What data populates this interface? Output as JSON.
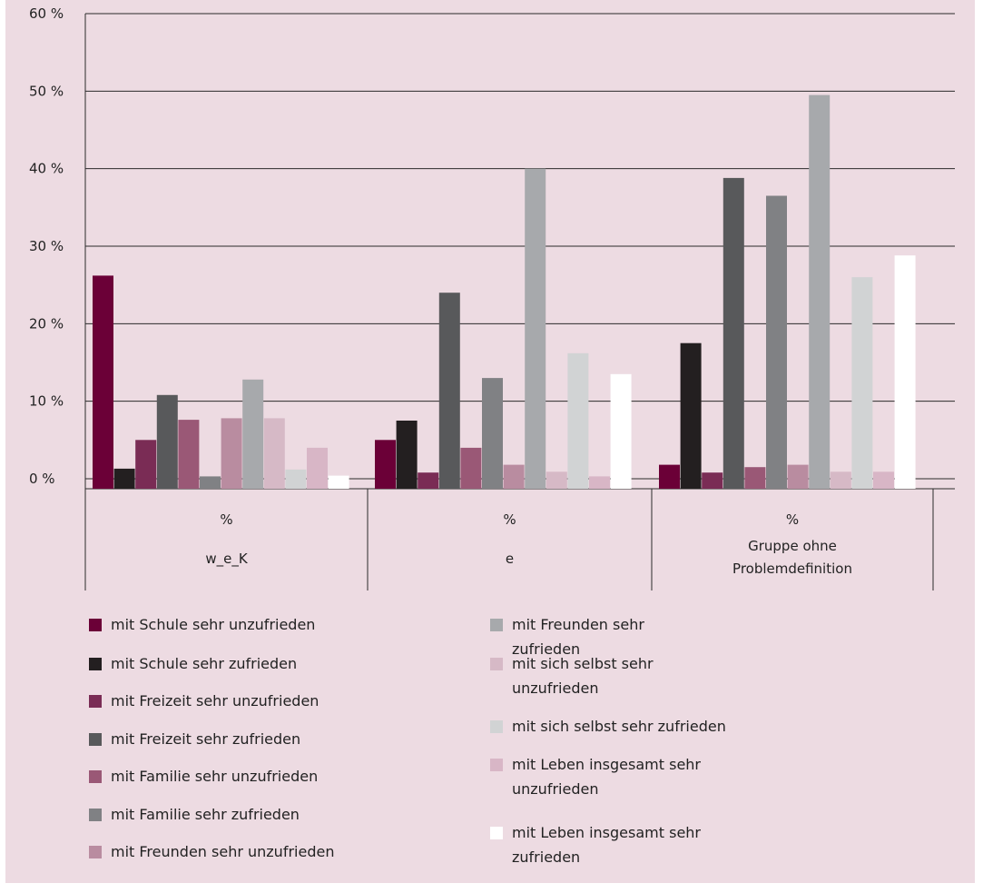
{
  "chart_data": {
    "type": "bar",
    "ylim": [
      0,
      60
    ],
    "y_ticks": [
      "60 %",
      "50 %",
      "40 %",
      "30 %",
      "20 %",
      "10 %",
      "0 %"
    ],
    "y_tick_values": [
      60,
      50,
      40,
      30,
      20,
      10,
      0
    ],
    "grid": true,
    "legend_placement": "bottom",
    "categories": [
      {
        "top": "%",
        "label": "w_e_K"
      },
      {
        "top": "%",
        "label": "e"
      },
      {
        "top": "%",
        "label": "Gruppe ohne Problemdefinition"
      }
    ],
    "series": [
      {
        "name": "mit Schule sehr unzufrieden",
        "color": "#6b0037",
        "values": [
          26.2,
          5.0,
          1.8
        ]
      },
      {
        "name": "mit Schule sehr zufrieden",
        "color": "#231f20",
        "values": [
          1.3,
          7.5,
          17.5
        ]
      },
      {
        "name": "mit Freizeit sehr unzufrieden",
        "color": "#7a2c55",
        "values": [
          5.0,
          0.8,
          0.8
        ]
      },
      {
        "name": "mit Freizeit sehr zufrieden",
        "color": "#58595b",
        "values": [
          10.8,
          24.0,
          38.8
        ]
      },
      {
        "name": "mit Familie sehr unzufrieden",
        "color": "#9a5876",
        "values": [
          7.6,
          4.0,
          1.5
        ]
      },
      {
        "name": "mit Familie sehr zufrieden",
        "color": "#808184",
        "values": [
          0.3,
          13.0,
          36.5
        ]
      },
      {
        "name": "mit Freunden sehr unzufrieden",
        "color": "#b98ca0",
        "values": [
          7.8,
          1.8,
          1.8
        ]
      },
      {
        "name": "mit Freunden sehr zufrieden",
        "color": "#a7a9ac",
        "values": [
          12.8,
          40.0,
          49.5
        ]
      },
      {
        "name": "mit sich selbst sehr unzufrieden",
        "color": "#d6b9c6",
        "values": [
          7.8,
          0.9,
          0.9
        ]
      },
      {
        "name": "mit sich selbst sehr zufrieden",
        "color": "#d1d3d4",
        "values": [
          1.2,
          16.2,
          26.0
        ]
      },
      {
        "name": "mit Leben insgesamt sehr unzufrieden",
        "color": "#d8b6c6",
        "values": [
          4.0,
          0.3,
          0.9
        ]
      },
      {
        "name": "mit Leben insgesamt sehr zufrieden",
        "color": "#ffffff",
        "values": [
          0.4,
          13.5,
          28.8
        ]
      }
    ]
  }
}
